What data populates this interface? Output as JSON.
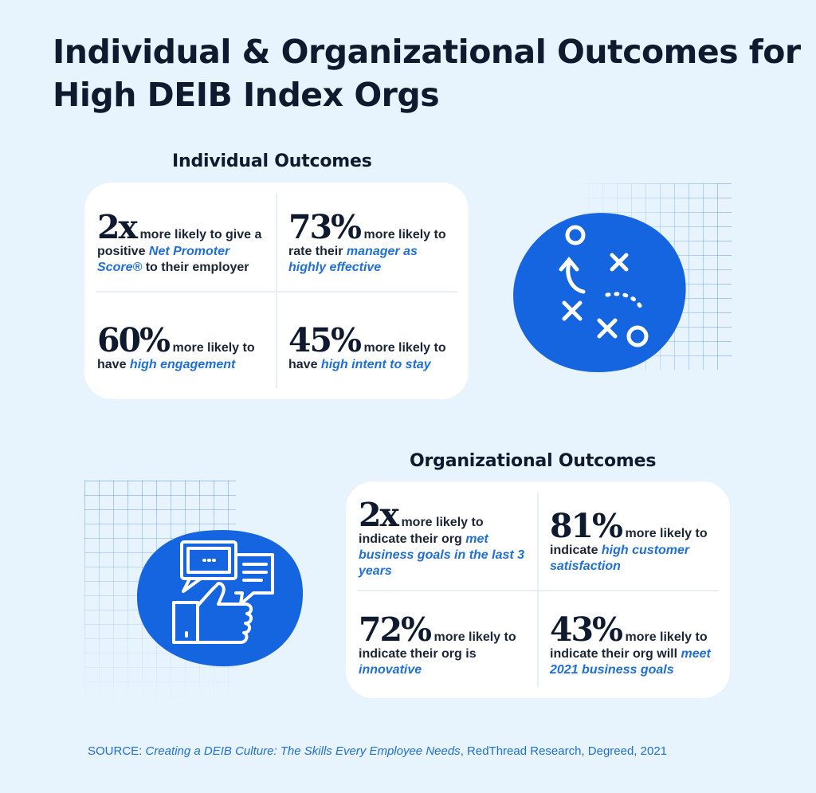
{
  "title": "Individual & Organizational Outcomes for High DEIB Index Orgs",
  "individual": {
    "heading": "Individual Outcomes",
    "items": [
      {
        "stat": "2x",
        "pre": "more likely to give a positive ",
        "highlight": "Net Promoter Score®",
        "post": " to their employer"
      },
      {
        "stat": "73%",
        "pre": "more likely to rate their ",
        "highlight": "manager as highly effective",
        "post": ""
      },
      {
        "stat": "60%",
        "pre": "more likely to have ",
        "highlight": "high engagement",
        "post": ""
      },
      {
        "stat": "45%",
        "pre": "more likely to have ",
        "highlight": "high intent to stay",
        "post": ""
      }
    ]
  },
  "organizational": {
    "heading": "Organizational Outcomes",
    "items": [
      {
        "stat": "2x",
        "pre": "more likely to indicate their org ",
        "highlight": "met business goals in the last 3 years",
        "post": ""
      },
      {
        "stat": "81%",
        "pre": "more likely to indicate ",
        "highlight": "high customer satisfaction",
        "post": ""
      },
      {
        "stat": "72%",
        "pre": "more likely to indicate their org is ",
        "highlight": "innovative",
        "post": ""
      },
      {
        "stat": "43%",
        "pre": "more likely to indicate their org will ",
        "highlight": "meet 2021 business goals",
        "post": ""
      }
    ]
  },
  "source": {
    "label": "SOURCE: ",
    "work": "Creating a DEIB Culture: The Skills Every Employee Needs",
    "rest": ", RedThread Research, Degreed, 2021"
  },
  "icons": [
    "strategy-play-icon",
    "thumbs-up-chat-icon"
  ],
  "colors": {
    "background": "#e7f3fd",
    "accent": "#1f6fd6",
    "text": "#0f1a2e",
    "blob": "#1565e0"
  }
}
